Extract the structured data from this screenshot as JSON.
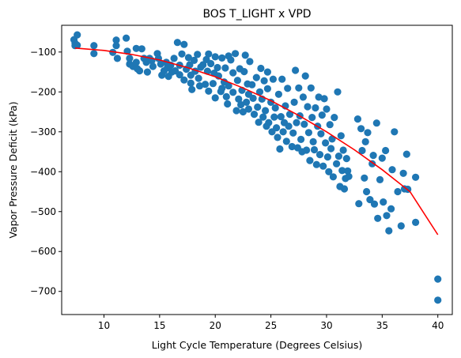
{
  "chart_data": {
    "type": "scatter",
    "title": "BOS T_LIGHT x VPD",
    "xlabel": "Light Cycle Temperature (Degrees Celsius)",
    "ylabel": "Vapor Pressure Deficit (kPa)",
    "xlim": [
      6.2,
      41.3
    ],
    "ylim": [
      -758,
      -33
    ],
    "xticks": [
      10,
      15,
      20,
      25,
      30,
      35,
      40
    ],
    "yticks": [
      -100,
      -200,
      -300,
      -400,
      -500,
      -600,
      -700
    ],
    "grid": false,
    "point_color": "#1f77b4",
    "fit_color": "#ff0000",
    "series": [
      {
        "type": "scatter",
        "points": [
          [
            7.3,
            -69
          ],
          [
            7.4,
            -78
          ],
          [
            7.4,
            -84
          ],
          [
            7.6,
            -57
          ],
          [
            7.6,
            -83
          ],
          [
            9.1,
            -84
          ],
          [
            9.1,
            -104
          ],
          [
            10.8,
            -101
          ],
          [
            11.1,
            -70
          ],
          [
            11.1,
            -84
          ],
          [
            11.2,
            -116
          ],
          [
            12.0,
            -65
          ],
          [
            12.1,
            -98
          ],
          [
            12.3,
            -116
          ],
          [
            12.3,
            -130
          ],
          [
            12.6,
            -136
          ],
          [
            12.9,
            -91
          ],
          [
            12.9,
            -126
          ],
          [
            13.0,
            -142
          ],
          [
            13.2,
            -147
          ],
          [
            13.4,
            -92
          ],
          [
            13.6,
            -116
          ],
          [
            13.8,
            -126
          ],
          [
            13.9,
            -150
          ],
          [
            14.1,
            -116
          ],
          [
            14.3,
            -122
          ],
          [
            14.4,
            -136
          ],
          [
            14.8,
            -104
          ],
          [
            14.9,
            -116
          ],
          [
            15.1,
            -130
          ],
          [
            15.2,
            -158
          ],
          [
            15.4,
            -147
          ],
          [
            15.6,
            -126
          ],
          [
            15.7,
            -139
          ],
          [
            15.8,
            -161
          ],
          [
            16.0,
            -133
          ],
          [
            16.1,
            -150
          ],
          [
            16.3,
            -116
          ],
          [
            16.4,
            -147
          ],
          [
            16.6,
            -76
          ],
          [
            16.8,
            -133
          ],
          [
            16.8,
            -157
          ],
          [
            17.0,
            -105
          ],
          [
            17.2,
            -81
          ],
          [
            17.2,
            -170
          ],
          [
            17.4,
            -143
          ],
          [
            17.6,
            -114
          ],
          [
            17.7,
            -132
          ],
          [
            17.8,
            -158
          ],
          [
            17.8,
            -178
          ],
          [
            17.9,
            -194
          ],
          [
            18.1,
            -121
          ],
          [
            18.2,
            -148
          ],
          [
            18.4,
            -106
          ],
          [
            18.5,
            -166
          ],
          [
            18.6,
            -185
          ],
          [
            18.7,
            -138
          ],
          [
            18.9,
            -132
          ],
          [
            19.1,
            -181
          ],
          [
            19.2,
            -119
          ],
          [
            19.3,
            -148
          ],
          [
            19.4,
            -105
          ],
          [
            19.4,
            -198
          ],
          [
            19.6,
            -129
          ],
          [
            19.8,
            -179
          ],
          [
            19.9,
            -153
          ],
          [
            20.0,
            -112
          ],
          [
            20.0,
            -215
          ],
          [
            20.2,
            -139
          ],
          [
            20.3,
            -160
          ],
          [
            20.5,
            -199
          ],
          [
            20.6,
            -115
          ],
          [
            20.6,
            -191
          ],
          [
            20.8,
            -175
          ],
          [
            20.9,
            -140
          ],
          [
            21.0,
            -212
          ],
          [
            21.1,
            -230
          ],
          [
            21.2,
            -110
          ],
          [
            21.2,
            -185
          ],
          [
            21.4,
            -120
          ],
          [
            21.6,
            -152
          ],
          [
            21.6,
            -201
          ],
          [
            21.8,
            -104
          ],
          [
            21.9,
            -247
          ],
          [
            22.0,
            -171
          ],
          [
            22.1,
            -218
          ],
          [
            22.2,
            -142
          ],
          [
            22.3,
            -232
          ],
          [
            22.4,
            -196
          ],
          [
            22.5,
            -250
          ],
          [
            22.6,
            -149
          ],
          [
            22.7,
            -108
          ],
          [
            22.8,
            -226
          ],
          [
            22.9,
            -180
          ],
          [
            23.0,
            -206
          ],
          [
            23.0,
            -243
          ],
          [
            23.1,
            -124
          ],
          [
            23.3,
            -182
          ],
          [
            23.4,
            -216
          ],
          [
            23.5,
            -256
          ],
          [
            23.7,
            -164
          ],
          [
            23.8,
            -238
          ],
          [
            23.9,
            -276
          ],
          [
            24.0,
            -200
          ],
          [
            24.1,
            -141
          ],
          [
            24.2,
            -218
          ],
          [
            24.3,
            -263
          ],
          [
            24.4,
            -172
          ],
          [
            24.5,
            -247
          ],
          [
            24.6,
            -286
          ],
          [
            24.7,
            -192
          ],
          [
            24.7,
            -150
          ],
          [
            24.8,
            -277
          ],
          [
            25.0,
            -226
          ],
          [
            25.1,
            -300
          ],
          [
            25.2,
            -168
          ],
          [
            25.3,
            -263
          ],
          [
            25.4,
            -240
          ],
          [
            25.5,
            -290
          ],
          [
            25.6,
            -314
          ],
          [
            25.7,
            -206
          ],
          [
            25.8,
            -343
          ],
          [
            25.9,
            -262
          ],
          [
            26.0,
            -168
          ],
          [
            26.1,
            -300
          ],
          [
            26.2,
            -277
          ],
          [
            26.3,
            -235
          ],
          [
            26.4,
            -324
          ],
          [
            26.5,
            -191
          ],
          [
            26.6,
            -286
          ],
          [
            26.7,
            -256
          ],
          [
            26.9,
            -337
          ],
          [
            27.0,
            -303
          ],
          [
            27.1,
            -226
          ],
          [
            27.2,
            -146
          ],
          [
            27.3,
            -277
          ],
          [
            27.4,
            -340
          ],
          [
            27.5,
            -190
          ],
          [
            27.6,
            -260
          ],
          [
            27.7,
            -319
          ],
          [
            27.8,
            -350
          ],
          [
            27.9,
            -213
          ],
          [
            28.0,
            -281
          ],
          [
            28.1,
            -160
          ],
          [
            28.2,
            -346
          ],
          [
            28.3,
            -237
          ],
          [
            28.4,
            -302
          ],
          [
            28.5,
            -372
          ],
          [
            28.6,
            -190
          ],
          [
            28.7,
            -264
          ],
          [
            28.8,
            -325
          ],
          [
            28.9,
            -345
          ],
          [
            29.0,
            -240
          ],
          [
            29.1,
            -382
          ],
          [
            29.2,
            -286
          ],
          [
            29.3,
            -213
          ],
          [
            29.4,
            -357
          ],
          [
            29.5,
            -305
          ],
          [
            29.6,
            -258
          ],
          [
            29.7,
            -386
          ],
          [
            29.8,
            -217
          ],
          [
            29.9,
            -328
          ],
          [
            30.0,
            -243
          ],
          [
            30.1,
            -363
          ],
          [
            30.2,
            -400
          ],
          [
            30.3,
            -282
          ],
          [
            30.4,
            -342
          ],
          [
            30.5,
            -318
          ],
          [
            30.6,
            -413
          ],
          [
            30.7,
            -264
          ],
          [
            30.9,
            -380
          ],
          [
            31.0,
            -200
          ],
          [
            31.1,
            -361
          ],
          [
            31.2,
            -437
          ],
          [
            31.3,
            -310
          ],
          [
            31.4,
            -397
          ],
          [
            31.5,
            -346
          ],
          [
            31.6,
            -443
          ],
          [
            31.7,
            -417
          ],
          [
            31.8,
            -367
          ],
          [
            31.9,
            -398
          ],
          [
            32.0,
            -412
          ],
          [
            32.8,
            -268
          ],
          [
            32.9,
            -480
          ],
          [
            33.1,
            -292
          ],
          [
            33.2,
            -347
          ],
          [
            33.4,
            -416
          ],
          [
            33.5,
            -325
          ],
          [
            33.6,
            -450
          ],
          [
            33.7,
            -302
          ],
          [
            33.9,
            -470
          ],
          [
            34.1,
            -380
          ],
          [
            34.2,
            -359
          ],
          [
            34.3,
            -481
          ],
          [
            34.5,
            -278
          ],
          [
            34.6,
            -517
          ],
          [
            34.8,
            -420
          ],
          [
            35.0,
            -366
          ],
          [
            35.1,
            -476
          ],
          [
            35.3,
            -347
          ],
          [
            35.4,
            -510
          ],
          [
            35.6,
            -548
          ],
          [
            35.8,
            -493
          ],
          [
            35.9,
            -395
          ],
          [
            36.1,
            -300
          ],
          [
            36.4,
            -450
          ],
          [
            36.7,
            -536
          ],
          [
            36.9,
            -404
          ],
          [
            37.0,
            -443
          ],
          [
            37.2,
            -356
          ],
          [
            37.3,
            -444
          ],
          [
            38.0,
            -414
          ],
          [
            38.0,
            -527
          ],
          [
            40.0,
            -669
          ],
          [
            40.0,
            -722
          ]
        ]
      },
      {
        "type": "line",
        "x": [
          7.4,
          10,
          12.5,
          15,
          17.5,
          20,
          22.5,
          25,
          27.5,
          30,
          32.5,
          35,
          37.5,
          40
        ],
        "y": [
          -90,
          -96,
          -106,
          -120,
          -139,
          -162,
          -190,
          -222,
          -259,
          -300,
          -345,
          -395,
          -450,
          -558
        ]
      }
    ]
  }
}
